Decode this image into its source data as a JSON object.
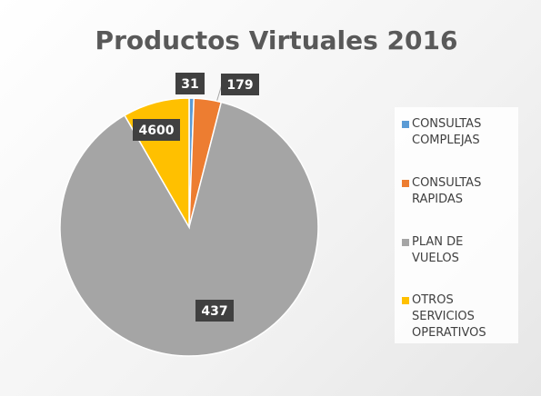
{
  "chart_data": {
    "type": "pie",
    "title": "Productos Virtuales 2016",
    "categories": [
      "CONSULTAS COMPLEJAS",
      "CONSULTAS RAPIDAS",
      "PLAN DE VUELOS",
      "OTROS SERVICIOS OPERATIVOS"
    ],
    "values": [
      31,
      179,
      4600,
      437
    ],
    "colors": [
      "#5b9bd5",
      "#ed7d31",
      "#a5a5a5",
      "#ffc000"
    ],
    "legend": "right"
  }
}
